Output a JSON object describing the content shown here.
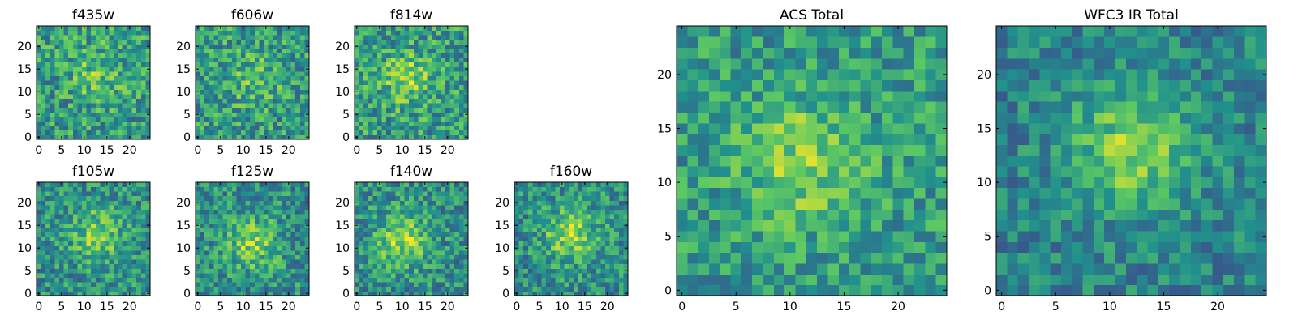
{
  "colormap": {
    "name": "viridis",
    "stops": [
      "#440154",
      "#3b528b",
      "#21908d",
      "#5dc863",
      "#fde725"
    ]
  },
  "chart_data": [
    {
      "id": "f435w",
      "type": "heatmap",
      "title": "f435w",
      "grid_size": 25,
      "xlim": [
        0,
        25
      ],
      "ylim": [
        0,
        25
      ],
      "x_ticks": [
        0,
        5,
        10,
        15,
        20
      ],
      "y_ticks": [
        0,
        5,
        10,
        15,
        20
      ],
      "center": [
        13,
        14
      ],
      "blob_amplitude": 0.18,
      "noise_amplitude": 0.5,
      "base_level": 0.55,
      "seed": 11
    },
    {
      "id": "f606w",
      "type": "heatmap",
      "title": "f606w",
      "grid_size": 25,
      "xlim": [
        0,
        25
      ],
      "ylim": [
        0,
        25
      ],
      "x_ticks": [
        0,
        5,
        10,
        15,
        20
      ],
      "y_ticks": [
        0,
        5,
        10,
        15,
        20
      ],
      "center": [
        12,
        13
      ],
      "blob_amplitude": 0.15,
      "noise_amplitude": 0.5,
      "base_level": 0.55,
      "seed": 23
    },
    {
      "id": "f814w",
      "type": "heatmap",
      "title": "f814w",
      "grid_size": 25,
      "xlim": [
        0,
        25
      ],
      "ylim": [
        0,
        25
      ],
      "x_ticks": [
        0,
        5,
        10,
        15,
        20
      ],
      "y_ticks": [
        0,
        5,
        10,
        15,
        20
      ],
      "center": [
        11,
        13
      ],
      "blob_amplitude": 0.25,
      "noise_amplitude": 0.5,
      "base_level": 0.55,
      "seed": 37
    },
    {
      "id": "f105w",
      "type": "heatmap",
      "title": "f105w",
      "grid_size": 25,
      "xlim": [
        0,
        25
      ],
      "ylim": [
        0,
        25
      ],
      "x_ticks": [
        0,
        5,
        10,
        15,
        20
      ],
      "y_ticks": [
        0,
        5,
        10,
        15,
        20
      ],
      "center": [
        13,
        13
      ],
      "blob_amplitude": 0.3,
      "noise_amplitude": 0.45,
      "base_level": 0.5,
      "seed": 41
    },
    {
      "id": "f125w",
      "type": "heatmap",
      "title": "f125w",
      "grid_size": 25,
      "xlim": [
        0,
        25
      ],
      "ylim": [
        0,
        25
      ],
      "x_ticks": [
        0,
        5,
        10,
        15,
        20
      ],
      "y_ticks": [
        0,
        5,
        10,
        15,
        20
      ],
      "center": [
        12,
        11
      ],
      "blob_amplitude": 0.3,
      "noise_amplitude": 0.45,
      "base_level": 0.5,
      "seed": 53
    },
    {
      "id": "f140w",
      "type": "heatmap",
      "title": "f140w",
      "grid_size": 25,
      "xlim": [
        0,
        25
      ],
      "ylim": [
        0,
        25
      ],
      "x_ticks": [
        0,
        5,
        10,
        15,
        20
      ],
      "y_ticks": [
        0,
        5,
        10,
        15,
        20
      ],
      "center": [
        10,
        12
      ],
      "blob_amplitude": 0.35,
      "noise_amplitude": 0.45,
      "base_level": 0.5,
      "seed": 67
    },
    {
      "id": "f160w",
      "type": "heatmap",
      "title": "f160w",
      "grid_size": 25,
      "xlim": [
        0,
        25
      ],
      "ylim": [
        0,
        25
      ],
      "x_ticks": [
        0,
        5,
        10,
        15,
        20
      ],
      "y_ticks": [
        0,
        5,
        10,
        15,
        20
      ],
      "center": [
        12,
        13
      ],
      "blob_amplitude": 0.35,
      "noise_amplitude": 0.45,
      "base_level": 0.5,
      "seed": 79
    },
    {
      "id": "acs-total",
      "type": "heatmap",
      "title": "ACS Total",
      "grid_size": 25,
      "xlim": [
        0,
        25
      ],
      "ylim": [
        0,
        25
      ],
      "x_ticks": [
        0,
        5,
        10,
        15,
        20
      ],
      "y_ticks": [
        0,
        5,
        10,
        15,
        20
      ],
      "center": [
        11,
        12
      ],
      "blob_amplitude": 0.25,
      "noise_amplitude": 0.4,
      "base_level": 0.55,
      "seed": 97
    },
    {
      "id": "wfc3-ir-total",
      "type": "heatmap",
      "title": "WFC3 IR Total",
      "grid_size": 25,
      "xlim": [
        0,
        25
      ],
      "ylim": [
        0,
        25
      ],
      "x_ticks": [
        0,
        5,
        10,
        15,
        20
      ],
      "y_ticks": [
        0,
        5,
        10,
        15,
        20
      ],
      "center": [
        12,
        13
      ],
      "blob_amplitude": 0.35,
      "noise_amplitude": 0.35,
      "base_level": 0.45,
      "seed": 113
    }
  ]
}
